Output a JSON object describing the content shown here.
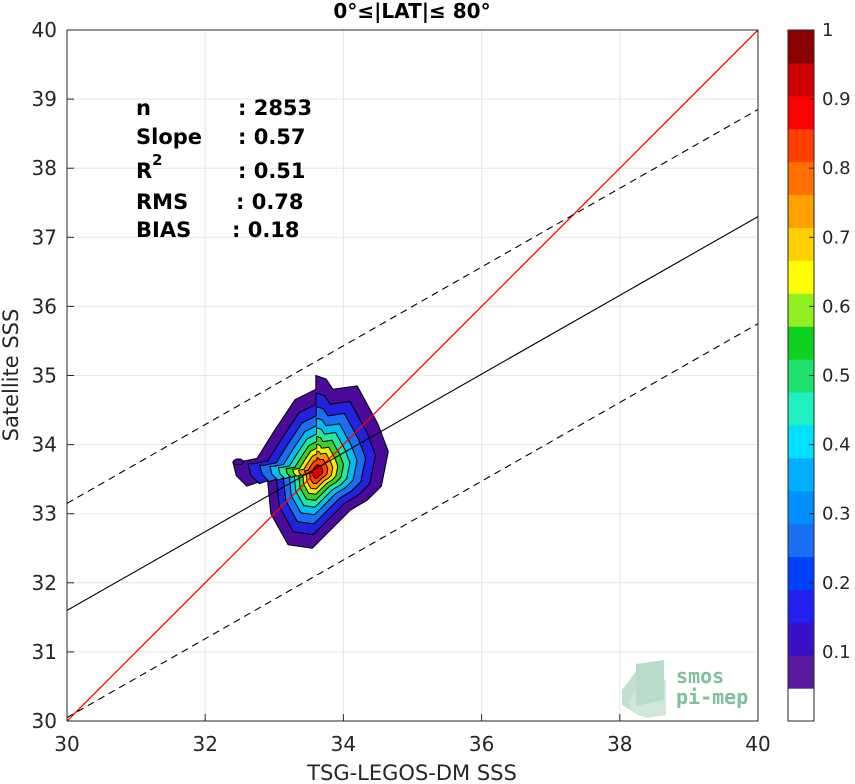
{
  "chart_data": {
    "type": "scatter",
    "title": "0°≤|LAT|≤ 80°",
    "xlabel": "TSG-LEGOS-DM SSS",
    "ylabel": "Satellite SSS",
    "xlim": [
      30,
      40
    ],
    "ylim": [
      30,
      40
    ],
    "xticks": [
      "30",
      "32",
      "34",
      "36",
      "38",
      "40"
    ],
    "yticks": [
      "30",
      "31",
      "32",
      "33",
      "34",
      "35",
      "36",
      "37",
      "38",
      "39",
      "40"
    ],
    "grid": true,
    "stats": [
      {
        "label": "n",
        "value": ": 2853"
      },
      {
        "label": "Slope",
        "value": ": 0.57"
      },
      {
        "label": "R",
        "sup": "2",
        "value": ": 0.51"
      },
      {
        "label": "RMS",
        "value": ": 0.78"
      },
      {
        "label": "BIAS",
        "value": ": 0.18"
      }
    ],
    "lines": {
      "identity": {
        "slope": 1,
        "intercept": 0,
        "color": "#ff0000"
      },
      "fit": {
        "x": [
          30,
          40
        ],
        "y": [
          31.6,
          37.3
        ],
        "color": "#000000"
      },
      "fit_upper": {
        "x": [
          30,
          40
        ],
        "y": [
          33.15,
          38.85
        ],
        "style": "dashed"
      },
      "fit_lower": {
        "x": [
          30,
          40
        ],
        "y": [
          30.05,
          35.75
        ],
        "style": "dashed"
      }
    },
    "density_center": {
      "x": 33.62,
      "y": 33.6
    },
    "density_contours": [
      {
        "level": 0.05,
        "color": "#4a0a9a",
        "points": [
          [
            32.9,
            33.5
          ],
          [
            32.6,
            33.4
          ],
          [
            32.45,
            33.55
          ],
          [
            32.4,
            33.75
          ],
          [
            32.5,
            33.75
          ],
          [
            32.75,
            33.8
          ],
          [
            33.0,
            34.2
          ],
          [
            33.3,
            34.65
          ],
          [
            33.6,
            34.8
          ],
          [
            33.6,
            35.0
          ],
          [
            33.75,
            34.95
          ],
          [
            33.85,
            34.8
          ],
          [
            34.2,
            34.85
          ],
          [
            34.5,
            34.3
          ],
          [
            34.65,
            33.9
          ],
          [
            34.55,
            33.4
          ],
          [
            34.35,
            33.2
          ],
          [
            34.1,
            33.05
          ],
          [
            34.0,
            32.95
          ],
          [
            33.75,
            32.7
          ],
          [
            33.55,
            32.5
          ],
          [
            33.2,
            32.55
          ],
          [
            32.95,
            33.0
          ],
          [
            32.9,
            33.5
          ]
        ]
      },
      {
        "level": 0.15,
        "color": "#2222dd",
        "scale": 0.82
      },
      {
        "level": 0.25,
        "color": "#1a6ff0",
        "scale": 0.68
      },
      {
        "level": 0.35,
        "color": "#00bfee",
        "scale": 0.56
      },
      {
        "level": 0.45,
        "color": "#22e8a0",
        "scale": 0.46
      },
      {
        "level": 0.55,
        "color": "#3cd12a",
        "scale": 0.37
      },
      {
        "level": 0.65,
        "color": "#f0f000",
        "scale": 0.29
      },
      {
        "level": 0.75,
        "color": "#ff9900",
        "scale": 0.22
      },
      {
        "level": 0.85,
        "color": "#ff4400",
        "scale": 0.15
      },
      {
        "level": 0.95,
        "color": "#dd0000",
        "scale": 0.08
      }
    ],
    "colorbar": {
      "range": [
        0,
        1
      ],
      "ticks": [
        "0.1",
        "0.2",
        "0.3",
        "0.4",
        "0.5",
        "0.6",
        "0.7",
        "0.8",
        "0.9",
        "1"
      ],
      "colors": [
        "#ffffff",
        "#5a1aa0",
        "#3a10c8",
        "#2020f0",
        "#0040ff",
        "#1a6ff0",
        "#0090ff",
        "#00b0ff",
        "#00e0ff",
        "#20f0c0",
        "#20e070",
        "#10d020",
        "#90f020",
        "#ffff00",
        "#ffd000",
        "#ffa000",
        "#ff7000",
        "#ff4000",
        "#ff0000",
        "#d00000",
        "#8b0000"
      ]
    },
    "logo": {
      "line1": "smos",
      "line2": "pi-mep"
    }
  }
}
